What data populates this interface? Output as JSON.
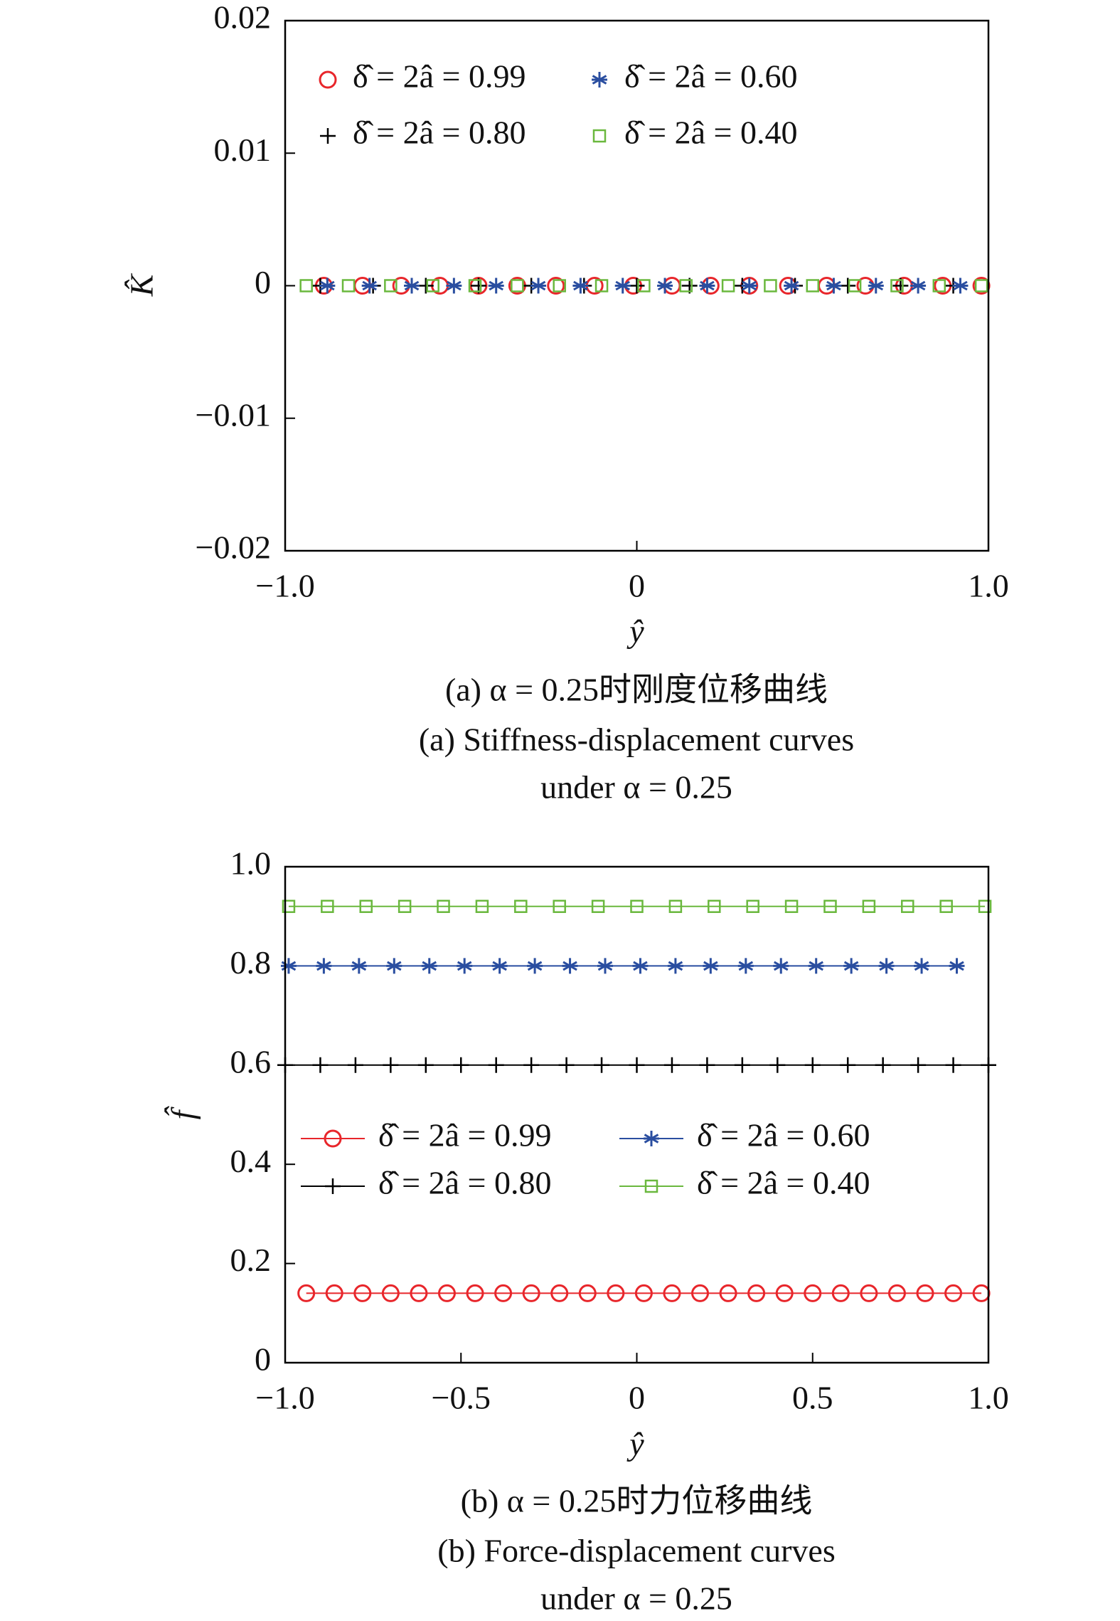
{
  "chart_data": [
    {
      "type": "scatter",
      "lines": false,
      "legend": "upper left",
      "xlabel": "ŷ",
      "ylabel": "K̂",
      "caption": [
        "(a) α = 0.25时刚度位移曲线",
        "(a) Stiffness-displacement curves",
        "under α = 0.25"
      ],
      "xlim": [
        -1,
        1
      ],
      "ylim": [
        -0.02,
        0.02
      ],
      "xticks": [
        {
          "value": -1,
          "label": "−1.0"
        },
        0,
        {
          "value": 1,
          "label": "1.0"
        }
      ],
      "yticks": [
        {
          "value": -0.02,
          "label": "−0.02"
        },
        {
          "value": -0.01,
          "label": "−0.01"
        },
        0,
        0.01,
        0.02
      ],
      "series": [
        {
          "name": "δ̂ = 2â = 0.99",
          "color": "#e8262b",
          "marker": "circle",
          "x": [
            -0.89,
            -0.78,
            -0.67,
            -0.56,
            -0.45,
            -0.34,
            -0.23,
            -0.12,
            -0.01,
            0.1,
            0.21,
            0.32,
            0.43,
            0.54,
            0.65,
            0.76,
            0.87,
            0.98
          ],
          "values": [
            0,
            0,
            0,
            0,
            0,
            0,
            0,
            0,
            0,
            0,
            0,
            0,
            0,
            0,
            0,
            0,
            0,
            0
          ]
        },
        {
          "name": "δ̂ = 2â = 0.80",
          "color": "#000000",
          "marker": "plus",
          "x": [
            -0.9,
            -0.75,
            -0.6,
            -0.45,
            -0.3,
            -0.15,
            0,
            0.15,
            0.3,
            0.45,
            0.6,
            0.75,
            0.9
          ],
          "values": [
            0,
            0,
            0,
            0,
            0,
            0,
            0,
            0,
            0,
            0,
            0,
            0,
            0
          ]
        },
        {
          "name": "δ̂ = 2â = 0.60",
          "color": "#2a4ea0",
          "marker": "star",
          "x": [
            -0.88,
            -0.76,
            -0.64,
            -0.52,
            -0.4,
            -0.28,
            -0.16,
            -0.04,
            0.08,
            0.2,
            0.32,
            0.44,
            0.56,
            0.68,
            0.8,
            0.92
          ],
          "values": [
            0,
            0,
            0,
            0,
            0,
            0,
            0,
            0,
            0,
            0,
            0,
            0,
            0,
            0,
            0,
            0
          ]
        },
        {
          "name": "δ̂ = 2â = 0.40",
          "color": "#6ab83e",
          "marker": "square",
          "x": [
            -0.94,
            -0.82,
            -0.7,
            -0.58,
            -0.46,
            -0.34,
            -0.22,
            -0.1,
            0.02,
            0.14,
            0.26,
            0.38,
            0.5,
            0.62,
            0.74,
            0.86,
            0.98
          ],
          "values": [
            0,
            0,
            0,
            0,
            0,
            0,
            0,
            0,
            0,
            0,
            0,
            0,
            0,
            0,
            0,
            0,
            0
          ]
        }
      ]
    },
    {
      "type": "line",
      "lines": true,
      "legend": "center left",
      "xlabel": "ŷ",
      "ylabel": "f̂",
      "caption": [
        "(b) α = 0.25时力位移曲线",
        "(b) Force-displacement curves",
        "under α = 0.25"
      ],
      "xlim": [
        -1,
        1
      ],
      "ylim": [
        0,
        1
      ],
      "xticks": [
        {
          "value": -1,
          "label": "−1.0"
        },
        {
          "value": -0.5,
          "label": "−0.5"
        },
        0,
        0.5,
        {
          "value": 1,
          "label": "1.0"
        }
      ],
      "yticks": [
        0,
        0.2,
        0.4,
        0.6,
        0.8,
        {
          "value": 1,
          "label": "1.0"
        }
      ],
      "series": [
        {
          "name": "δ̂ = 2â = 0.99",
          "color": "#e8262b",
          "marker": "circle",
          "x": [
            -0.94,
            -0.86,
            -0.78,
            -0.7,
            -0.62,
            -0.54,
            -0.46,
            -0.38,
            -0.3,
            -0.22,
            -0.14,
            -0.06,
            0.02,
            0.1,
            0.18,
            0.26,
            0.34,
            0.42,
            0.5,
            0.58,
            0.66,
            0.74,
            0.82,
            0.9,
            0.98
          ],
          "values": [
            0.14,
            0.14,
            0.14,
            0.14,
            0.14,
            0.14,
            0.14,
            0.14,
            0.14,
            0.14,
            0.14,
            0.14,
            0.14,
            0.14,
            0.14,
            0.14,
            0.14,
            0.14,
            0.14,
            0.14,
            0.14,
            0.14,
            0.14,
            0.14,
            0.14
          ]
        },
        {
          "name": "δ̂ = 2â = 0.80",
          "color": "#000000",
          "marker": "plus",
          "x": [
            -1,
            -0.9,
            -0.8,
            -0.7,
            -0.6,
            -0.5,
            -0.4,
            -0.3,
            -0.2,
            -0.1,
            0,
            0.1,
            0.2,
            0.3,
            0.4,
            0.5,
            0.6,
            0.7,
            0.8,
            0.9,
            1
          ],
          "values": [
            0.6,
            0.6,
            0.6,
            0.6,
            0.6,
            0.6,
            0.6,
            0.6,
            0.6,
            0.6,
            0.6,
            0.6,
            0.6,
            0.6,
            0.6,
            0.6,
            0.6,
            0.6,
            0.6,
            0.6,
            0.6
          ]
        },
        {
          "name": "δ̂ = 2â = 0.60",
          "color": "#2a4ea0",
          "marker": "star",
          "x": [
            -0.99,
            -0.89,
            -0.79,
            -0.69,
            -0.59,
            -0.49,
            -0.39,
            -0.29,
            -0.19,
            -0.09,
            0.01,
            0.11,
            0.21,
            0.31,
            0.41,
            0.51,
            0.61,
            0.71,
            0.81,
            0.91
          ],
          "values": [
            0.8,
            0.8,
            0.8,
            0.8,
            0.8,
            0.8,
            0.8,
            0.8,
            0.8,
            0.8,
            0.8,
            0.8,
            0.8,
            0.8,
            0.8,
            0.8,
            0.8,
            0.8,
            0.8,
            0.8
          ]
        },
        {
          "name": "δ̂ = 2â = 0.40",
          "color": "#6ab83e",
          "marker": "square",
          "x": [
            -0.99,
            -0.88,
            -0.77,
            -0.66,
            -0.55,
            -0.44,
            -0.33,
            -0.22,
            -0.11,
            0,
            0.11,
            0.22,
            0.33,
            0.44,
            0.55,
            0.66,
            0.77,
            0.88,
            0.99
          ],
          "values": [
            0.92,
            0.92,
            0.92,
            0.92,
            0.92,
            0.92,
            0.92,
            0.92,
            0.92,
            0.92,
            0.92,
            0.92,
            0.92,
            0.92,
            0.92,
            0.92,
            0.92,
            0.92,
            0.92
          ]
        }
      ]
    }
  ]
}
